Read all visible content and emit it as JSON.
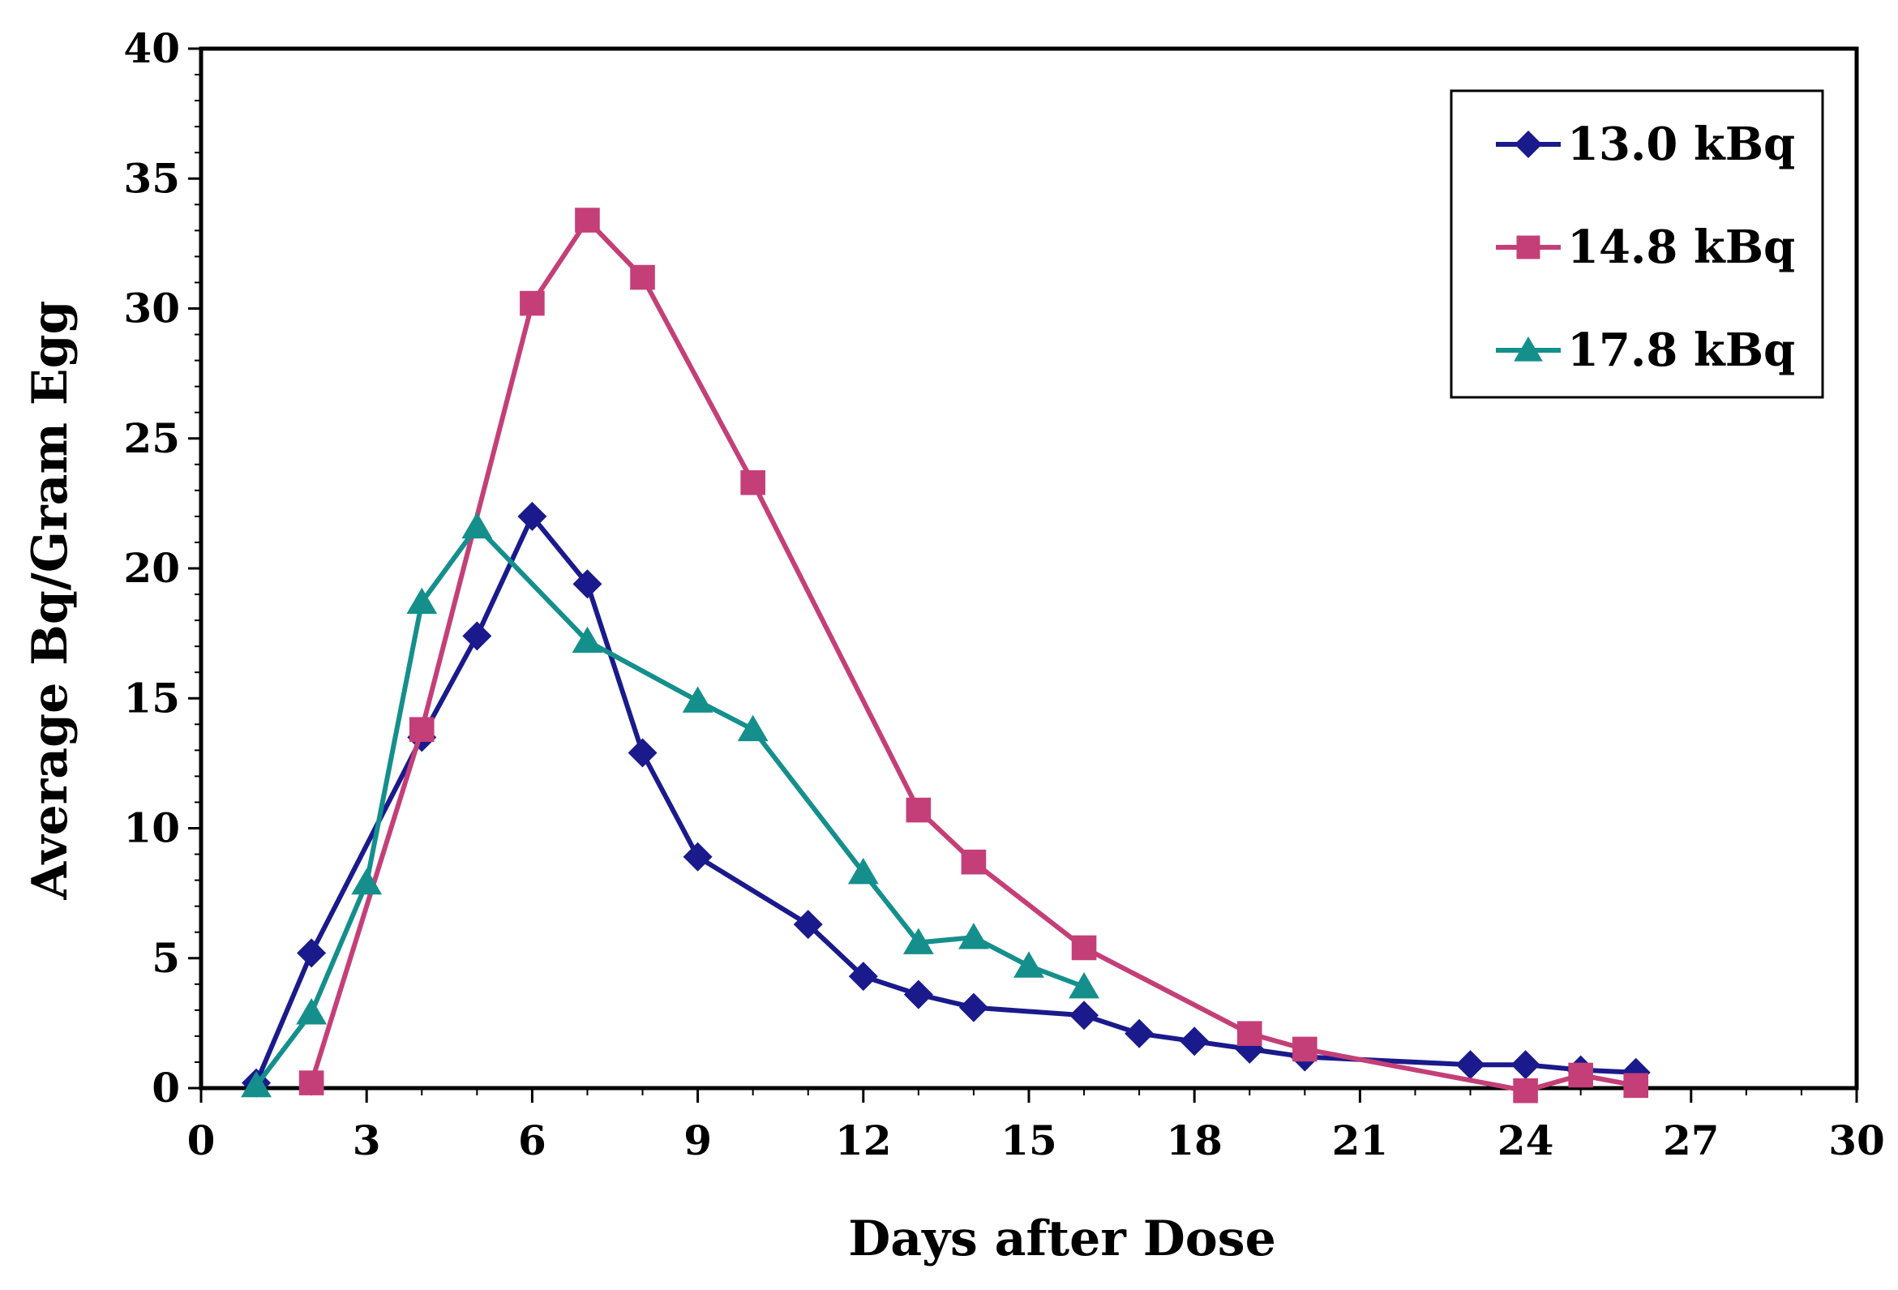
{
  "chart_data": {
    "type": "line",
    "title": "",
    "xlabel": "Days after Dose",
    "ylabel": "Average Bq/Gram Egg",
    "xlim": [
      0,
      30
    ],
    "ylim": [
      0,
      40
    ],
    "xticks": [
      "0",
      "3",
      "6",
      "9",
      "12",
      "15",
      "18",
      "21",
      "24",
      "27",
      "30"
    ],
    "yticks": [
      "0",
      "5",
      "10",
      "15",
      "20",
      "25",
      "30",
      "35",
      "40"
    ],
    "grid": false,
    "legend_position": "top-right",
    "series": [
      {
        "name": "13.0 kBq",
        "color": "#1a1a8c",
        "marker": "diamond",
        "x": [
          1,
          2,
          4,
          5,
          6,
          7,
          8,
          9,
          11,
          12,
          13,
          14,
          16,
          17,
          18,
          19,
          20,
          23,
          24,
          25,
          26
        ],
        "y": [
          0.2,
          5.2,
          13.5,
          17.4,
          22.0,
          19.4,
          12.9,
          8.9,
          6.3,
          4.3,
          3.6,
          3.1,
          2.8,
          2.1,
          1.8,
          1.5,
          1.2,
          0.9,
          0.9,
          0.7,
          0.6
        ]
      },
      {
        "name": "14.8 kBq",
        "color": "#c43f78",
        "marker": "square",
        "x": [
          2,
          4,
          6,
          7,
          8,
          10,
          13,
          14,
          16,
          19,
          20,
          24,
          25,
          26
        ],
        "y": [
          0.2,
          13.8,
          30.2,
          33.4,
          31.2,
          23.3,
          10.7,
          8.7,
          5.4,
          2.1,
          1.5,
          -0.1,
          0.5,
          0.1
        ]
      },
      {
        "name": "17.8 kBq",
        "color": "#148f8c",
        "marker": "triangle",
        "x": [
          1,
          2,
          3,
          4,
          5,
          7,
          9,
          10,
          12,
          13,
          14,
          15,
          16
        ],
        "y": [
          0.1,
          2.9,
          7.9,
          18.7,
          21.6,
          17.2,
          14.9,
          13.8,
          8.3,
          5.6,
          5.8,
          4.7,
          3.9
        ]
      }
    ]
  }
}
